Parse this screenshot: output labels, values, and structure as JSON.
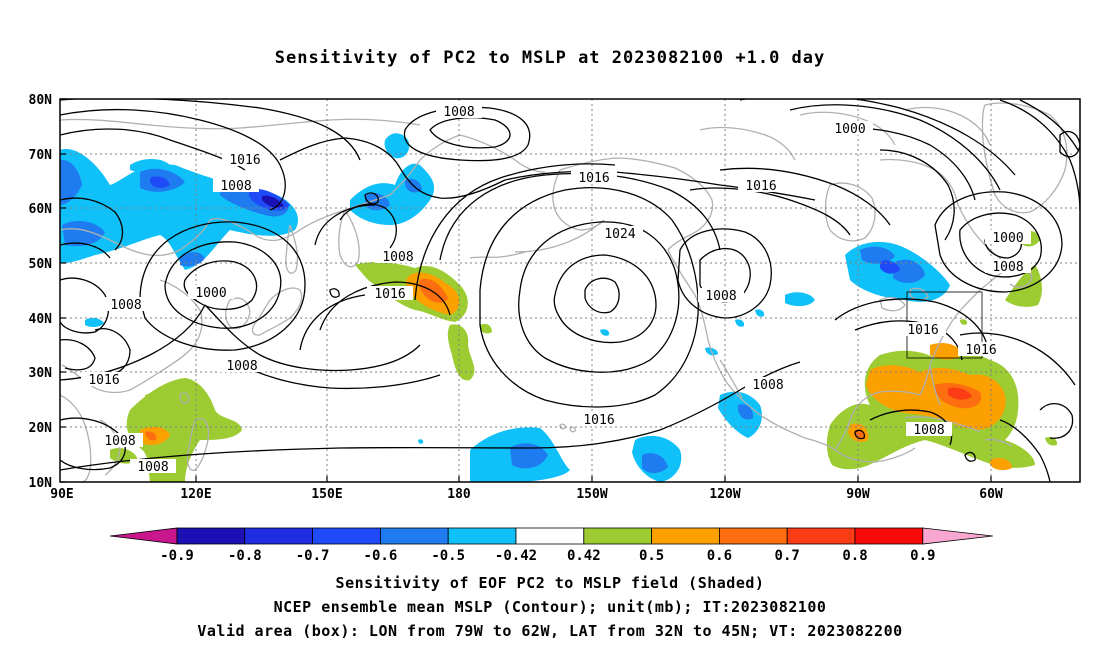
{
  "title": "Sensitivity of PC2 to MSLP at 2023082100 +1.0 day",
  "lat_labels": [
    "80N",
    "70N",
    "60N",
    "50N",
    "40N",
    "30N",
    "20N",
    "10N"
  ],
  "lon_labels": [
    "90E",
    "120E",
    "150E",
    "180",
    "150W",
    "120W",
    "90W",
    "60W"
  ],
  "colorbar": {
    "labels": [
      "-0.9",
      "-0.8",
      "-0.7",
      "-0.6",
      "-0.5",
      "-0.42",
      "0.42",
      "0.5",
      "0.6",
      "0.7",
      "0.8",
      "0.9"
    ],
    "colors": [
      "#c8168c",
      "#1a10b4",
      "#1e2ee0",
      "#1e4af8",
      "#1e7cf0",
      "#10c0f8",
      "#ffffff",
      "#9ccc32",
      "#fca000",
      "#fc6e10",
      "#fc3c14",
      "#fc0a0a",
      "#f8a8d0"
    ]
  },
  "contour_labels": [
    "1008",
    "1016",
    "1008",
    "1016",
    "1024",
    "1016",
    "1000",
    "1000",
    "1008",
    "1008",
    "1008",
    "1016",
    "1008",
    "1000",
    "1008",
    "1016",
    "1016",
    "1016",
    "1008",
    "1008",
    "1008",
    "1016",
    "1008",
    "1008"
  ],
  "captions": [
    "Sensitivity of EOF PC2 to MSLP field (Shaded)",
    "NCEP ensemble mean MSLP (Contour); unit(mb); IT:2023082100",
    "Valid area (box): LON from 79W to 62W, LAT from 32N to 45N; VT: 2023082200"
  ],
  "valid_box": {
    "lon_range": [
      "79W",
      "62W"
    ],
    "lat_range": [
      "32N",
      "45N"
    ]
  }
}
